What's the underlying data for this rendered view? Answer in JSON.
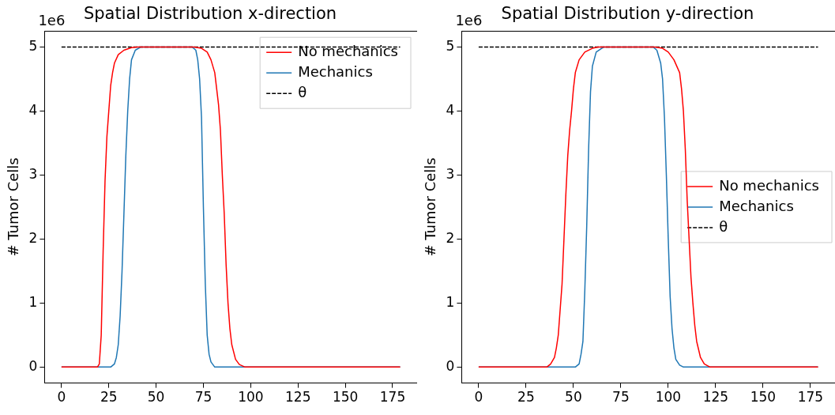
{
  "chart_data": [
    {
      "type": "line",
      "title": "Spatial Distribution x-direction",
      "ylabel": "# Tumor Cells",
      "annotations": [
        "1e6"
      ],
      "legend": "top right",
      "grid": false,
      "xlim": [
        -8.95,
        187.95
      ],
      "xticks": [
        0,
        25,
        50,
        75,
        100,
        125,
        150,
        175
      ],
      "ylim": [
        -0.25,
        5.25
      ],
      "yticks": [
        0,
        1,
        2,
        3,
        4,
        5
      ],
      "series": [
        {
          "name": "No mechanics",
          "color": "#ff0000",
          "x": [
            0,
            19,
            20,
            21,
            22,
            23,
            24,
            25,
            26,
            27,
            28,
            30,
            33,
            37,
            40,
            70,
            74,
            77,
            79,
            81,
            83,
            84,
            85,
            86,
            87,
            88,
            89,
            90,
            92,
            94,
            97,
            179
          ],
          "values": [
            0,
            0,
            0.05,
            0.5,
            1.8,
            2.9,
            3.6,
            4.0,
            4.4,
            4.6,
            4.75,
            4.88,
            4.95,
            4.99,
            5,
            5,
            4.98,
            4.92,
            4.8,
            4.6,
            4.1,
            3.7,
            3.0,
            2.4,
            1.6,
            1.0,
            0.6,
            0.35,
            0.12,
            0.04,
            0,
            0
          ]
        },
        {
          "name": "Mechanics",
          "color": "#1f77b4",
          "x": [
            0,
            26,
            28,
            29,
            30,
            31,
            32,
            33,
            34,
            35,
            36,
            37,
            39,
            42,
            69,
            71,
            72,
            73,
            74,
            75,
            76,
            77,
            78,
            79,
            81,
            179
          ],
          "values": [
            0,
            0,
            0.05,
            0.15,
            0.35,
            0.8,
            1.5,
            2.4,
            3.3,
            4.0,
            4.5,
            4.8,
            4.95,
            5,
            5,
            4.95,
            4.8,
            4.5,
            3.9,
            2.5,
            1.3,
            0.5,
            0.2,
            0.08,
            0,
            0
          ]
        },
        {
          "name": "θ",
          "color": "#000000",
          "line_style": "dashed",
          "x": [
            0,
            179
          ],
          "values": [
            5,
            5
          ]
        }
      ]
    },
    {
      "type": "line",
      "title": "Spatial Distribution y-direction",
      "ylabel": "# Tumor Cells",
      "annotations": [
        "1e6"
      ],
      "legend": "right",
      "grid": false,
      "xlim": [
        -8.95,
        187.95
      ],
      "xticks": [
        0,
        25,
        50,
        75,
        100,
        125,
        150,
        175
      ],
      "ylim": [
        -0.25,
        5.25
      ],
      "yticks": [
        0,
        1,
        2,
        3,
        4,
        5
      ],
      "series": [
        {
          "name": "No mechanics",
          "color": "#ff0000",
          "x": [
            0,
            36,
            38,
            40,
            41,
            42,
            43,
            44,
            45,
            46,
            47,
            48,
            49,
            50,
            51,
            53,
            56,
            60,
            63,
            93,
            97,
            100,
            103,
            106,
            107,
            108,
            109,
            110,
            111,
            112,
            113,
            114,
            115,
            117,
            119,
            122,
            179
          ],
          "values": [
            0,
            0,
            0.05,
            0.15,
            0.3,
            0.5,
            0.9,
            1.3,
            2.0,
            2.7,
            3.3,
            3.7,
            4.0,
            4.35,
            4.6,
            4.8,
            4.92,
            4.98,
            5,
            5,
            4.98,
            4.92,
            4.8,
            4.6,
            4.35,
            4.0,
            3.4,
            2.6,
            2.0,
            1.4,
            1.0,
            0.65,
            0.4,
            0.15,
            0.05,
            0,
            0
          ]
        },
        {
          "name": "Mechanics",
          "color": "#1f77b4",
          "x": [
            0,
            51,
            53,
            54,
            55,
            56,
            57,
            58,
            59,
            60,
            62,
            66,
            92,
            94,
            96,
            97,
            98,
            99,
            100,
            101,
            102,
            103,
            104,
            106,
            108,
            179
          ],
          "values": [
            0,
            0,
            0.05,
            0.2,
            0.4,
            1.2,
            2.2,
            3.4,
            4.3,
            4.7,
            4.92,
            5,
            5,
            4.95,
            4.75,
            4.5,
            3.9,
            3.0,
            2.0,
            1.1,
            0.6,
            0.3,
            0.12,
            0.03,
            0,
            0
          ]
        },
        {
          "name": "θ",
          "color": "#000000",
          "line_style": "dashed",
          "x": [
            0,
            179
          ],
          "values": [
            5,
            5
          ]
        }
      ]
    }
  ]
}
